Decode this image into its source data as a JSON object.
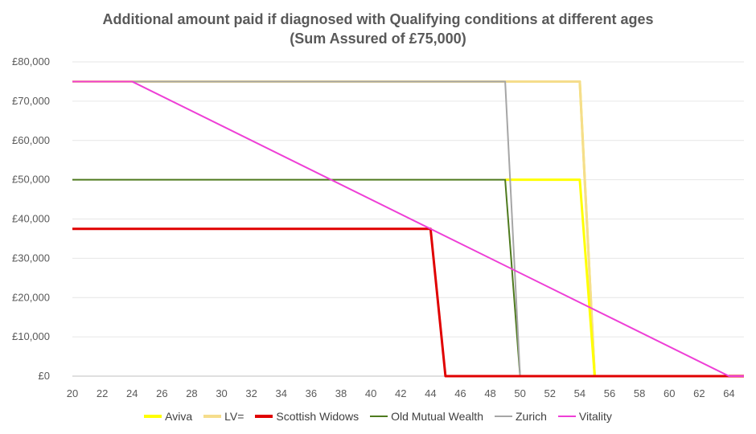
{
  "chart_data": {
    "type": "line",
    "title": "Additional amount paid if diagnosed with Qualifying conditions at different ages",
    "subtitle": "(Sum Assured of £75,000)",
    "xlabel": "",
    "ylabel": "",
    "xlim": [
      20,
      65
    ],
    "ylim": [
      0,
      80000
    ],
    "x_ticks": [
      "20",
      "22",
      "24",
      "26",
      "28",
      "30",
      "32",
      "34",
      "36",
      "38",
      "40",
      "42",
      "44",
      "46",
      "48",
      "50",
      "52",
      "54",
      "56",
      "58",
      "60",
      "62",
      "64"
    ],
    "y_ticks": [
      "£0",
      "£10,000",
      "£20,000",
      "£30,000",
      "£40,000",
      "£50,000",
      "£60,000",
      "£70,000",
      "£80,000"
    ],
    "grid": true,
    "legend_position": "bottom",
    "series": [
      {
        "name": "Aviva",
        "color": "#ffff00",
        "width": 3,
        "points": [
          [
            20,
            75000
          ],
          [
            54,
            75000
          ],
          [
            55,
            0
          ],
          [
            65,
            0
          ]
        ]
      },
      {
        "name": "LV=",
        "color": "#f5dd8c",
        "width": 3,
        "points": [
          [
            20,
            75000
          ],
          [
            54,
            75000
          ],
          [
            55,
            0
          ],
          [
            65,
            0
          ]
        ]
      },
      {
        "name": "Aviva-lower",
        "legend": false,
        "color": "#ffff00",
        "width": 3,
        "points": [
          [
            49,
            50000
          ],
          [
            54,
            50000
          ],
          [
            55,
            0
          ]
        ]
      },
      {
        "name": "Old Mutual Wealth",
        "color": "#4e7a1e",
        "width": 2,
        "points": [
          [
            20,
            50000
          ],
          [
            49,
            50000
          ],
          [
            50,
            0
          ],
          [
            65,
            0
          ]
        ]
      },
      {
        "name": "Zurich",
        "color": "#a6a6a6",
        "width": 2,
        "points": [
          [
            20,
            75000
          ],
          [
            49,
            75000
          ],
          [
            50,
            0
          ],
          [
            65,
            0
          ]
        ]
      },
      {
        "name": "Scottish Widows",
        "color": "#e00000",
        "width": 3,
        "points": [
          [
            20,
            37500
          ],
          [
            44,
            37500
          ],
          [
            45,
            0
          ],
          [
            65,
            0
          ]
        ]
      },
      {
        "name": "Vitality",
        "color": "#ee3fd6",
        "width": 2,
        "points": [
          [
            20,
            75000
          ],
          [
            24,
            75000
          ],
          [
            64,
            0
          ],
          [
            65,
            0
          ]
        ]
      }
    ],
    "legend": [
      "Aviva",
      "LV=",
      "Scottish Widows",
      "Old Mutual Wealth",
      "Zurich",
      "Vitality"
    ]
  }
}
